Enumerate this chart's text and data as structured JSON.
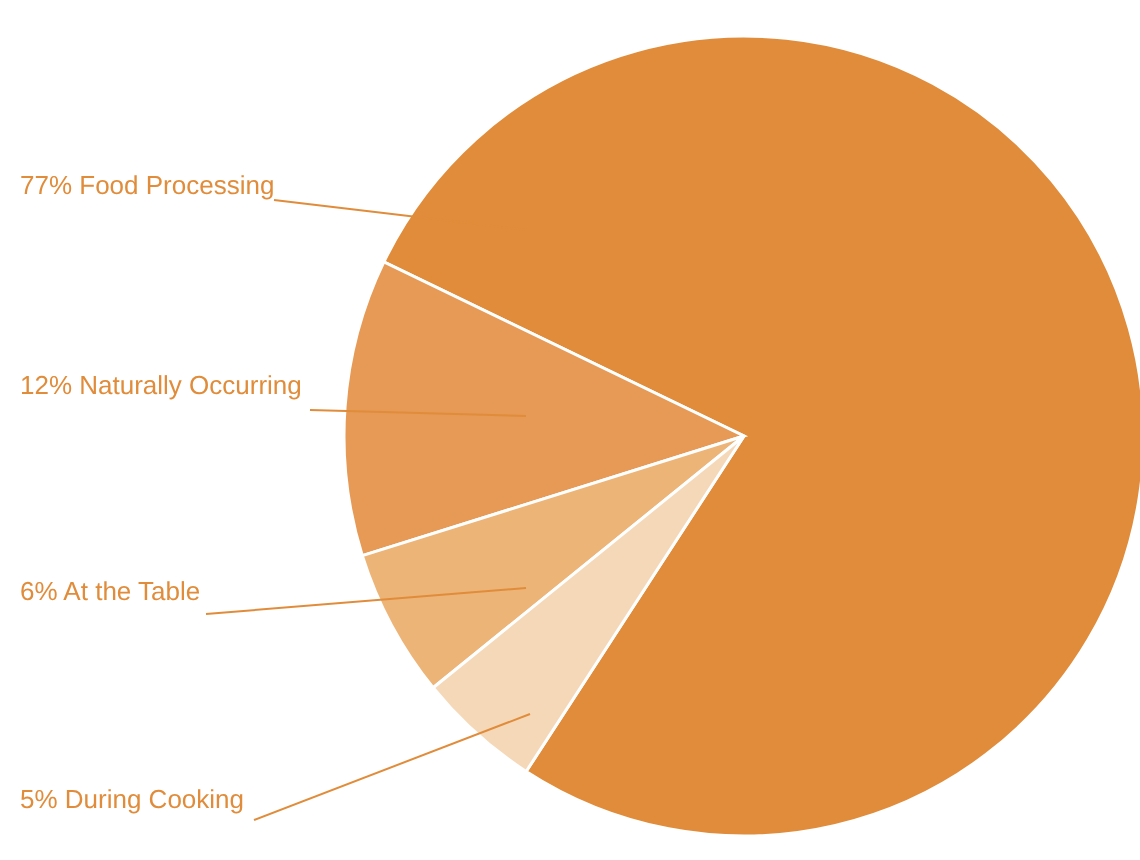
{
  "chart_data": {
    "type": "pie",
    "categories": [
      "Food Processing",
      "Naturally Occurring",
      "At the Table",
      "During Cooking"
    ],
    "values": [
      77,
      12,
      6,
      5
    ],
    "value_labels": [
      "77%",
      "12%",
      "6%",
      "5%"
    ],
    "colors": [
      "#e08c3a",
      "#e69a55",
      "#edb478",
      "#f5d8b8"
    ]
  }
}
